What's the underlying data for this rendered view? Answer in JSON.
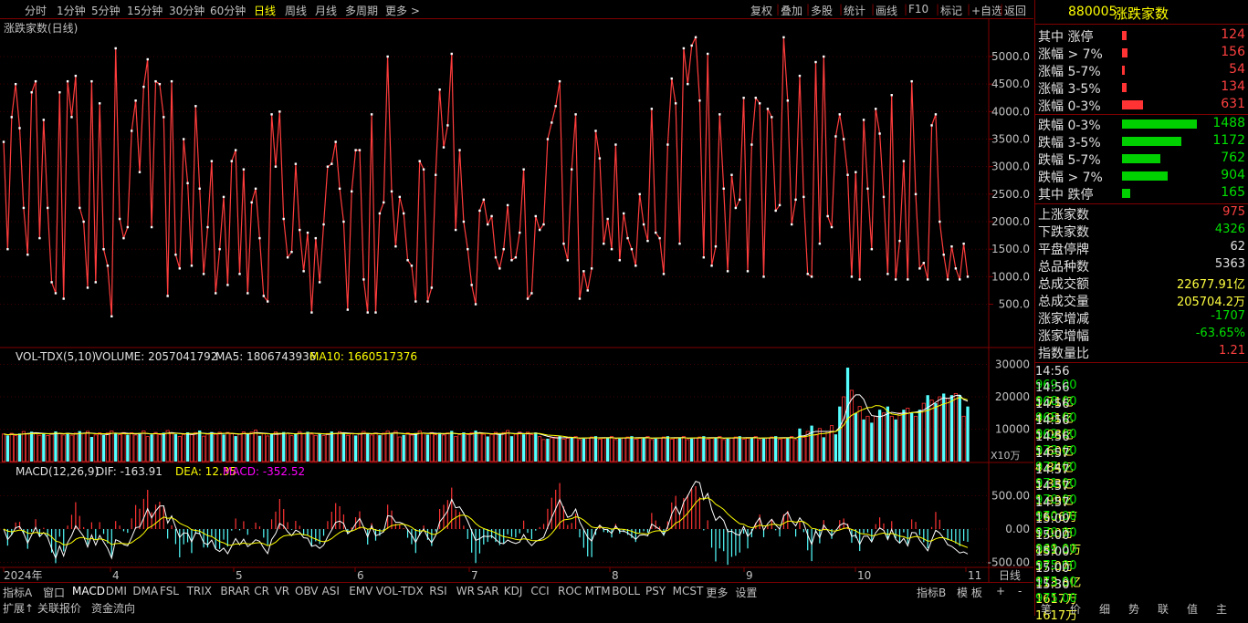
{
  "toolbar": {
    "periods": [
      "分时",
      "1分钟",
      "5分钟",
      "15分钟",
      "30分钟",
      "60分钟",
      "日线",
      "周线",
      "月线",
      "多周期",
      "更多 >"
    ],
    "active_period": "日线",
    "tools": [
      "复权",
      "叠加",
      "多股",
      "统计",
      "画线",
      "F10",
      "标记",
      "+自选",
      "返回"
    ]
  },
  "main_chart": {
    "title": "涨跌家数(日线)",
    "y_ticks": [
      "5000.0",
      "4500.0",
      "4000.0",
      "3500.0",
      "3000.0",
      "2500.0",
      "2000.0",
      "1500.0",
      "1000.0",
      "500.0"
    ]
  },
  "volume_panel": {
    "title": "VOL-TDX(5,10)",
    "volume_label": "VOLUME: 2057041792",
    "ma5_label": "MA5: 1806743936",
    "ma10_label": "MA10: 1660517376",
    "y_ticks": [
      "30000",
      "20000",
      "10000"
    ],
    "unit": "X10万"
  },
  "macd_panel": {
    "title": "MACD(12,26,9)",
    "dif_label": "DIF: -163.91",
    "dea_label": "DEA: 12.35",
    "macd_label": "MACD: -352.52",
    "y_ticks": [
      "500.00",
      "0.00",
      "-500.00"
    ]
  },
  "time_axis": {
    "labels": [
      "2024年",
      "4",
      "5",
      "6",
      "7",
      "8",
      "9",
      "10",
      "11"
    ],
    "period_label": "日线"
  },
  "indicator_tabs": {
    "items": [
      "指标A",
      "窗口",
      "MACD",
      "DMI",
      "DMA",
      "FSL",
      "TRIX",
      "BRAR",
      "CR",
      "VR",
      "OBV",
      "ASI",
      "EMV",
      "VOL-TDX",
      "RSI",
      "WR",
      "SAR",
      "KDJ",
      "CCI",
      "ROC",
      "MTM",
      "BOLL",
      "PSY",
      "MCST",
      "更多",
      "设置"
    ],
    "right_items": [
      "指标B",
      "模 板",
      "+",
      "-"
    ]
  },
  "extension_tabs": {
    "items": [
      "扩展↑",
      "关联报价",
      "资金流向"
    ]
  },
  "sidebar": {
    "code": "880005",
    "name": "涨跌家数",
    "up_rows": [
      {
        "label": "其中 涨停",
        "value": "124",
        "ratio": 0.056
      },
      {
        "label": "涨幅 > 7%",
        "value": "156",
        "ratio": 0.07
      },
      {
        "label": "涨幅 5-7%",
        "value": "54",
        "ratio": 0.024
      },
      {
        "label": "涨幅 3-5%",
        "value": "134",
        "ratio": 0.06
      },
      {
        "label": "涨幅 0-3%",
        "value": "631",
        "ratio": 0.28
      }
    ],
    "down_rows": [
      {
        "label": "跌幅 0-3%",
        "value": "1488",
        "ratio": 1.0
      },
      {
        "label": "跌幅 3-5%",
        "value": "1172",
        "ratio": 0.79
      },
      {
        "label": "跌幅 5-7%",
        "value": "762",
        "ratio": 0.51
      },
      {
        "label": "跌幅 > 7%",
        "value": "904",
        "ratio": 0.61
      },
      {
        "label": "其中 跌停",
        "value": "165",
        "ratio": 0.11
      }
    ],
    "stats": [
      {
        "label": "上涨家数",
        "value": "975",
        "color": "#ff4040"
      },
      {
        "label": "下跌家数",
        "value": "4326",
        "color": "#00e000"
      },
      {
        "label": "平盘停牌",
        "value": "62",
        "color": "#e0e0e0"
      },
      {
        "label": "总品种数",
        "value": "5363",
        "color": "#e0e0e0"
      },
      {
        "label": "总成交额",
        "value": "22677.91亿",
        "color": "#ffff40"
      },
      {
        "label": "总成交量",
        "value": "205704.2万",
        "color": "#ffff40"
      },
      {
        "label": "涨家增减",
        "value": "-1707",
        "color": "#00e000"
      },
      {
        "label": "涨家增幅",
        "value": "-63.65%",
        "color": "#00e000"
      },
      {
        "label": "指数量比",
        "value": "1.21",
        "color": "#ff4040"
      }
    ],
    "ticks": [
      {
        "time": "14:56",
        "price": "969.00",
        "amount": "5.71亿"
      },
      {
        "time": "14:56",
        "price": "968.00",
        "amount": "4.91亿"
      },
      {
        "time": "14:56",
        "price": "965.00",
        "amount": "5.08亿"
      },
      {
        "time": "14:56",
        "price": "962.00",
        "amount": "5.60亿"
      },
      {
        "time": "14:56",
        "price": "973.00",
        "amount": "4.84亿"
      },
      {
        "time": "14:57",
        "price": "977.00",
        "amount": "5.33亿"
      },
      {
        "time": "14:57",
        "price": "971.00",
        "amount": "1.99亿"
      },
      {
        "time": "14:57",
        "price": "970.00",
        "amount": "1606万"
      },
      {
        "time": "14:57",
        "price": "970.00",
        "amount": "9.00万"
      },
      {
        "time": "15:00",
        "price": "970.00",
        "amount": "881.0万"
      },
      {
        "time": "15:00",
        "price": "969.00",
        "amount": "57.0万"
      },
      {
        "time": "15:00",
        "price": "975.00",
        "amount": "113.8亿"
      },
      {
        "time": "15:00",
        "price": "975.00",
        "amount": "1617万"
      },
      {
        "time": "15:30",
        "price": "975.00",
        "amount": "1617万"
      }
    ],
    "tabs": [
      "笔",
      "价",
      "细",
      "势",
      "联",
      "值",
      "主"
    ]
  },
  "colors": {
    "up": "#ff3333",
    "down": "#00d000",
    "frame": "#800000",
    "ma5": "#ffffff",
    "ma10": "#ffff00",
    "cyan": "#55ffff",
    "macd_label": "#ff00ff"
  },
  "chart_data": [
    {
      "type": "line",
      "title": "涨跌家数(日线)",
      "ylim": [
        0,
        5500
      ],
      "series": [
        {
          "name": "涨跌家数(日线)",
          "values": [
            3450,
            1500,
            3900,
            4500,
            3700,
            2250,
            1400,
            4350,
            4550,
            1700,
            3850,
            2250,
            900,
            700,
            4350,
            600,
            4550,
            3900,
            4650,
            2250,
            2000,
            800,
            4550,
            900,
            4150,
            1500,
            1200,
            280,
            5150,
            2050,
            1700,
            1900,
            3650,
            4200,
            2900,
            4450,
            4950,
            1900,
            4550,
            4500,
            3900,
            650,
            4550,
            1400,
            1150,
            3500,
            2700,
            1200,
            4100,
            2600,
            1050,
            1900,
            3100,
            700,
            1500,
            2450,
            850,
            3100,
            3300,
            1050,
            2950,
            700,
            2350,
            2600,
            1700,
            650,
            550,
            3950,
            3000,
            4000,
            2050,
            1350,
            1450,
            3050,
            1850,
            1100,
            1800,
            350,
            1700,
            900,
            1950,
            3000,
            3050,
            3450,
            2600,
            2000,
            400,
            2550,
            3300,
            3300,
            950,
            350,
            3950,
            350,
            2150,
            2350,
            5000,
            2550,
            1550,
            2450,
            2150,
            1300,
            1200,
            550,
            3100,
            2950,
            550,
            800,
            2850,
            4400,
            3350,
            3750,
            5050,
            1850,
            3300,
            2000,
            1500,
            850,
            500,
            2200,
            2400,
            1950,
            2100,
            1350,
            1150,
            1500,
            2300,
            1300,
            1350,
            1800,
            2950,
            600,
            700,
            2100,
            1850,
            1950,
            3500,
            3800,
            4100,
            4550,
            1600,
            1300,
            2950,
            3950,
            600,
            1100,
            750,
            1150,
            3650,
            3150,
            1600,
            2050,
            1500,
            3400,
            1300,
            2150,
            1700,
            1500,
            1200,
            2500,
            1950,
            1650,
            4050,
            1800,
            1700,
            1050,
            3400,
            4600,
            4150,
            1600,
            5150,
            4500,
            5200,
            5350,
            4200,
            1350,
            5050,
            1200,
            1550,
            3950,
            2600,
            1100,
            2850,
            2250,
            2400,
            4250,
            1100,
            3400,
            4250,
            4150,
            1000,
            4050,
            3900,
            2200,
            2300,
            5350,
            4200,
            1950,
            2400,
            4650,
            2450,
            1050,
            1000,
            4900,
            1600,
            5000,
            2100,
            1900,
            3550,
            3950,
            3500,
            2850,
            1000,
            2900,
            950,
            3850,
            2600,
            1500,
            4050,
            3600,
            2450,
            1050,
            4300,
            950,
            1650,
            3100,
            950,
            4550,
            2500,
            1150,
            1250,
            950,
            3750,
            3950,
            2000,
            1400,
            950,
            1550,
            1150,
            950,
            1600,
            1000
          ]
        }
      ]
    }
  ]
}
